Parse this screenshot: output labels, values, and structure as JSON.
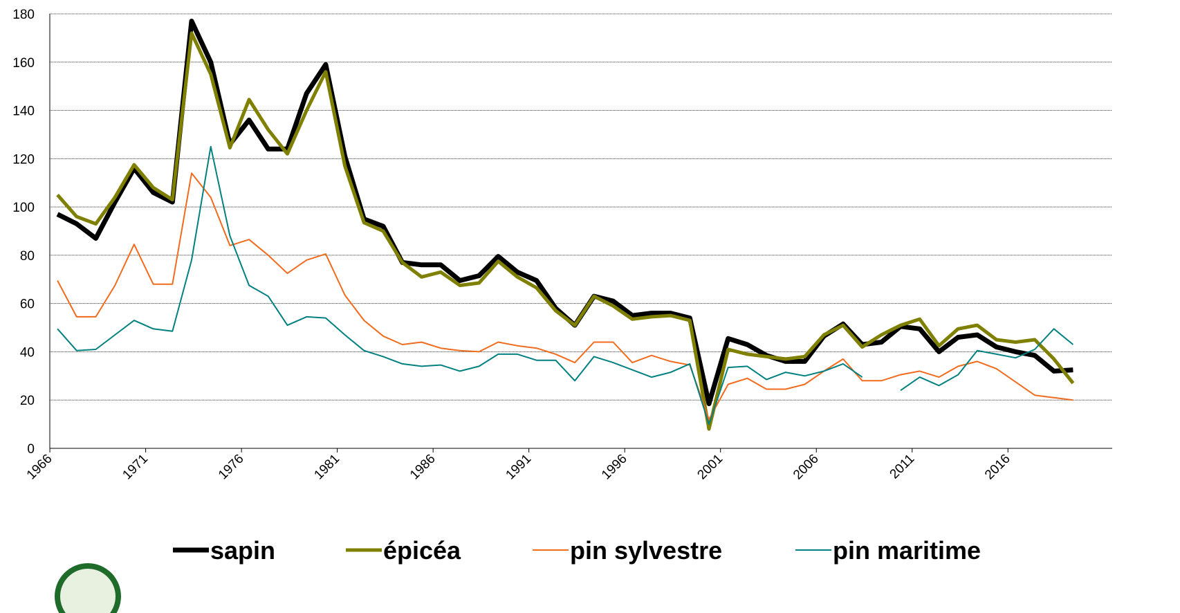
{
  "chart_data": {
    "type": "line",
    "x": [
      1966,
      1967,
      1968,
      1969,
      1970,
      1971,
      1972,
      1973,
      1974,
      1975,
      1976,
      1977,
      1978,
      1979,
      1980,
      1981,
      1982,
      1983,
      1984,
      1985,
      1986,
      1987,
      1988,
      1989,
      1990,
      1991,
      1992,
      1993,
      1994,
      1995,
      1996,
      1997,
      1998,
      1999,
      2000,
      2001,
      2002,
      2003,
      2004,
      2005,
      2006,
      2007,
      2008,
      2009,
      2010,
      2011,
      2012,
      2013,
      2014,
      2015,
      2016,
      2017,
      2018,
      2019
    ],
    "series": [
      {
        "name": "sapin",
        "color": "#000000",
        "values": [
          97,
          93,
          87,
          102,
          116,
          106,
          102,
          177,
          160,
          126,
          136,
          124,
          124,
          147,
          159,
          121,
          95,
          92,
          77,
          76,
          76,
          69.5,
          71.5,
          79.5,
          73,
          69.5,
          58,
          51,
          63,
          61,
          55,
          56,
          56,
          54,
          18.5,
          45.5,
          43,
          38.5,
          36,
          36,
          46.5,
          51.5,
          43,
          44,
          50.5,
          49.5,
          40,
          46,
          47,
          42,
          40,
          38.5,
          32,
          32.5
        ]
      },
      {
        "name": "épicéa",
        "color": "#7f7f00",
        "values": [
          105,
          96,
          93,
          104,
          117.5,
          108,
          103,
          172,
          155,
          124.5,
          144.5,
          132,
          122,
          140,
          156,
          117,
          93.5,
          90,
          77,
          71,
          73,
          67.5,
          68.5,
          77.5,
          71,
          66.5,
          57,
          51,
          63,
          59,
          53.5,
          54.5,
          55,
          53,
          8,
          41,
          39,
          38,
          37,
          38,
          47,
          51,
          42,
          47,
          51,
          53.5,
          42.5,
          49.5,
          51,
          45,
          44,
          45,
          37,
          27
        ]
      },
      {
        "name": "pin sylvestre",
        "color": "#f26b1d",
        "values": [
          69.5,
          54.5,
          54.5,
          67.5,
          84.5,
          68,
          68,
          114,
          104,
          84,
          86.5,
          80,
          72.5,
          78,
          80.5,
          63.5,
          53,
          46.5,
          43,
          44,
          41.5,
          40.5,
          40,
          44,
          42.5,
          41.5,
          39,
          35.5,
          44,
          44,
          35.5,
          38.5,
          36,
          34.5,
          12,
          26.5,
          29,
          24.5,
          24.5,
          26.5,
          32,
          37,
          28,
          28,
          30.5,
          32,
          29.5,
          34,
          36,
          33,
          27.5,
          22,
          21,
          20
        ]
      },
      {
        "name": "pin maritime",
        "color": "#008080",
        "values": [
          49.5,
          40.5,
          41,
          47,
          53,
          49.5,
          48.5,
          78,
          125,
          88,
          67.5,
          63,
          51,
          54.5,
          54,
          47,
          40.5,
          38,
          35,
          34,
          34.5,
          32,
          34,
          39,
          39,
          36.5,
          36.5,
          28,
          38,
          35.5,
          32.5,
          29.5,
          31.5,
          35,
          10,
          33.5,
          34,
          28.5,
          31.5,
          30,
          32,
          35,
          29.5,
          null,
          24,
          29.5,
          26,
          30.5,
          40.5,
          39,
          37.5,
          41,
          49.5,
          43
        ]
      }
    ],
    "xlim": [
      1965.6,
      2019.6
    ],
    "xticks": [
      1966,
      1971,
      1976,
      1981,
      1986,
      1991,
      1996,
      2001,
      2006,
      2011,
      2016
    ],
    "ylim": [
      0,
      180
    ],
    "yticks": [
      0,
      20,
      40,
      60,
      80,
      100,
      120,
      140,
      160,
      180
    ],
    "grid": true,
    "legend": "bottom"
  }
}
